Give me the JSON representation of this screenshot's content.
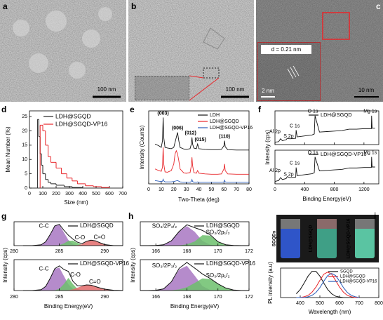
{
  "panels": {
    "a": {
      "label": "a",
      "scale_bar": "100 nm"
    },
    "b": {
      "label": "b",
      "scale_bar": "100 nm"
    },
    "c": {
      "label": "c",
      "scale_bar": "10 nm",
      "inset_spacing": "d = 0.21 nm",
      "inset_scale_bar": "2 nm"
    },
    "d": {
      "label": "d",
      "xlabel": "Size (nm)",
      "ylabel": "Mean Number (%)",
      "xlim": [
        0,
        700
      ],
      "xticks": [
        0,
        100,
        200,
        300,
        400,
        500,
        600,
        700
      ],
      "ylim": [
        0,
        27
      ],
      "yticks": [
        0,
        5,
        10,
        15,
        20,
        25
      ],
      "series": [
        {
          "name": "LDH@SGQD",
          "color": "#222222",
          "bins": [
            60,
            70,
            80,
            90,
            100,
            120,
            140,
            160,
            200,
            260,
            320,
            400
          ],
          "values": [
            24,
            18,
            12,
            8,
            5,
            3,
            2,
            1.5,
            1,
            0.5,
            0.2
          ]
        },
        {
          "name": "LDH@SGQD-VP16",
          "color": "#e8262a",
          "bins": [
            80,
            100,
            120,
            140,
            160,
            200,
            240,
            280,
            320,
            360,
            420,
            480,
            540,
            600
          ],
          "values": [
            22,
            20,
            15,
            11,
            9,
            7,
            5,
            3.5,
            2.5,
            1.5,
            0.8,
            0.5,
            0.2
          ]
        }
      ]
    },
    "e": {
      "label": "e",
      "xlabel": "Two-Theta (deg)",
      "ylabel": "Intensity (Counts)",
      "xlim": [
        0,
        80
      ],
      "xticks": [
        0,
        10,
        20,
        30,
        40,
        50,
        60,
        70,
        80
      ],
      "ylim": [
        0,
        22
      ],
      "peak_labels": [
        "(003)",
        "(006)",
        "(012)",
        "(015)",
        "(110)"
      ],
      "x": [
        5,
        8,
        10,
        11,
        11.5,
        12,
        13,
        15,
        18,
        20,
        21,
        22,
        23,
        24,
        25,
        28,
        30,
        33,
        34,
        34.5,
        35,
        36,
        38,
        39,
        40,
        45,
        50,
        55,
        58,
        60,
        60.5,
        61,
        63,
        70,
        80
      ],
      "series": [
        {
          "name": "LDH",
          "color": "#111111",
          "values": [
            12,
            11.5,
            11,
            13,
            20,
            14,
            11,
            10.8,
            10.6,
            11,
            12.5,
            14,
            15.5,
            13,
            11,
            10.5,
            10.4,
            10.6,
            12,
            14,
            12,
            10.8,
            10.6,
            12,
            10.6,
            10.4,
            10.3,
            10.3,
            10.4,
            11.5,
            13,
            11.2,
            10.3,
            10.2,
            10.2
          ]
        },
        {
          "name": "LDH@SGQD",
          "color": "#e8262a",
          "values": [
            4.5,
            4,
            3.8,
            5,
            11,
            6,
            3.6,
            3.5,
            4,
            6,
            9,
            10,
            9,
            7,
            4.5,
            3.3,
            3.2,
            3.4,
            5.5,
            8,
            5.5,
            3.4,
            3.2,
            4,
            3.2,
            3,
            2.9,
            2.9,
            3,
            4.5,
            6,
            4,
            3,
            2.9,
            2.9
          ]
        },
        {
          "name": "LDH@SGQD-VP16",
          "color": "#2a5cb8",
          "values": [
            1,
            0.8,
            0.7,
            0.8,
            1.4,
            0.9,
            0.6,
            0.6,
            0.6,
            0.7,
            0.8,
            0.9,
            1,
            0.8,
            0.6,
            0.5,
            0.5,
            0.5,
            0.7,
            1.3,
            0.7,
            0.5,
            0.5,
            0.6,
            0.5,
            0.5,
            0.5,
            0.5,
            0.5,
            0.6,
            1.1,
            0.6,
            0.5,
            0.5,
            0.5
          ]
        }
      ]
    },
    "f": {
      "label": "f",
      "xlabel": "Binding Energy(eV)",
      "ylabel": "Intensity (cps)",
      "xlim": [
        0,
        1400
      ],
      "xticks": [
        0,
        400,
        800,
        1200
      ],
      "ylim": [
        0,
        7
      ],
      "x": [
        0,
        50,
        75,
        100,
        150,
        165,
        200,
        280,
        285,
        300,
        400,
        500,
        530,
        540,
        600,
        700,
        800,
        900,
        1000,
        1100,
        1200,
        1300,
        1303,
        1310,
        1350
      ],
      "plots": [
        {
          "name": "LDH@SGQD",
          "color": "#111111",
          "peak_labels": [
            "Al 2p",
            "S 2p",
            "C 1s",
            "O 1s",
            "Mg 1s"
          ],
          "values": [
            0.5,
            0.6,
            1.2,
            0.8,
            1,
            1.3,
            1.2,
            1.3,
            3,
            1.6,
            1.8,
            2,
            2.2,
            6,
            2.6,
            2.7,
            2.8,
            2.9,
            3.2,
            3.2,
            3.3,
            3.3,
            6,
            3.4,
            3.4
          ]
        },
        {
          "name": "LDH@SGQD-VP16",
          "color": "#111111",
          "peak_labels": [
            "Al 2p",
            "S 2p",
            "C 1s",
            "O 1s",
            "Mg 1s"
          ],
          "values": [
            0.5,
            0.7,
            1.3,
            0.9,
            1.1,
            1.5,
            1.3,
            1.4,
            3.4,
            1.7,
            1.9,
            2.1,
            2.3,
            5.6,
            2.7,
            2.8,
            2.9,
            3,
            3.3,
            3.3,
            3.4,
            3.4,
            5.6,
            3.5,
            3.5
          ]
        }
      ]
    },
    "g": {
      "label": "g",
      "xlabel": "Binding Energy(eV)",
      "ylabel": "Intensity (cps)",
      "xlim": [
        280,
        292
      ],
      "xticks": [
        280,
        285,
        290
      ],
      "ylim": [
        0,
        11
      ],
      "x": [
        281,
        282,
        283,
        283.5,
        284,
        284.5,
        285,
        285.5,
        286,
        286.5,
        287,
        287.5,
        288,
        288.5,
        289,
        289.5,
        290,
        291,
        292
      ],
      "plots": [
        {
          "name": "LDH@SGQD",
          "color": "#111111",
          "values": [
            0,
            0,
            0.4,
            1.8,
            5.2,
            9.1,
            9.8,
            7.1,
            4.8,
            3.0,
            1.6,
            0.9,
            2.0,
            2.5,
            2.2,
            1.3,
            0.5,
            0,
            0
          ],
          "components": [
            {
              "label": "C-C",
              "color": "#a877c2",
              "values": [
                0,
                0,
                0.4,
                1.8,
                5.2,
                9.1,
                9.6,
                6.1,
                2.6,
                0.7,
                0.1,
                0,
                0,
                0,
                0,
                0,
                0,
                0,
                0
              ]
            },
            {
              "label": "C-O",
              "color": "#6cbf6c",
              "values": [
                0,
                0,
                0,
                0,
                0,
                0,
                0.2,
                1.0,
                2.2,
                2.3,
                1.3,
                0.3,
                0.1,
                0,
                0,
                0,
                0,
                0,
                0
              ]
            },
            {
              "label": "C=O",
              "color": "#e36b6b",
              "values": [
                0,
                0,
                0,
                0,
                0,
                0,
                0,
                0,
                0,
                0,
                0.2,
                0.6,
                1.9,
                2.5,
                2.2,
                1.3,
                0.5,
                0,
                0
              ]
            }
          ]
        },
        {
          "name": "LDH@SGQD-VP16",
          "color": "#111111",
          "values": [
            0,
            0,
            0.3,
            1.5,
            4.4,
            7.8,
            8.8,
            7.5,
            6.8,
            3.3,
            1.7,
            1.7,
            2,
            1.9,
            1.4,
            0.9,
            0.5,
            0.1,
            0
          ],
          "components": [
            {
              "label": "C-C",
              "color": "#a877c2",
              "values": [
                0,
                0,
                0.3,
                1.5,
                4.4,
                7.7,
                8.2,
                5.2,
                2.2,
                0.6,
                0.1,
                0,
                0,
                0,
                0,
                0,
                0,
                0,
                0
              ]
            },
            {
              "label": "C-O",
              "color": "#6cbf6c",
              "values": [
                0,
                0,
                0,
                0,
                0,
                0.1,
                0.6,
                2.3,
                4.5,
                2.3,
                0.6,
                0.1,
                0,
                0,
                0,
                0,
                0,
                0,
                0
              ]
            },
            {
              "label": "C=O",
              "color": "#e36b6b",
              "values": [
                0,
                0,
                0,
                0,
                0,
                0,
                0,
                0,
                0.1,
                0.4,
                1.0,
                1.6,
                2,
                1.9,
                1.4,
                0.9,
                0.5,
                0.1,
                0
              ]
            }
          ]
        }
      ]
    },
    "h": {
      "label": "h",
      "xlabel": "Binding Energy(eV)",
      "ylabel": "Intensity (cps)",
      "xlim": [
        165,
        172
      ],
      "xticks": [
        166,
        168,
        170,
        172
      ],
      "ylim": [
        0,
        11
      ],
      "x": [
        165,
        165.5,
        166,
        166.5,
        167,
        167.5,
        168,
        168.5,
        169,
        169.5,
        170,
        170.5,
        171,
        171.5,
        172
      ],
      "plots": [
        {
          "name": "LDH@SGQD",
          "color": "#111111",
          "values": [
            0,
            0,
            0.1,
            0.4,
            2.2,
            6.5,
            9.6,
            8.3,
            7.0,
            5.0,
            1.8,
            0.4,
            0.1,
            0,
            0
          ],
          "components": [
            {
              "label": "SO₃/2P₃/₂",
              "color": "#a877c2",
              "values": [
                0,
                0,
                0.1,
                0.4,
                2.2,
                6.4,
                9,
                6.4,
                2.2,
                0.4,
                0,
                0,
                0,
                0,
                0
              ]
            },
            {
              "label": "SO₃/2p₁/₂",
              "color": "#6cbf6c",
              "values": [
                0,
                0,
                0,
                0,
                0,
                0.1,
                0.6,
                1.9,
                4.8,
                4.6,
                1.8,
                0.4,
                0.1,
                0,
                0
              ]
            }
          ]
        },
        {
          "name": "LDH@SGQD-VP16",
          "color": "#111111",
          "values": [
            0,
            0,
            0.1,
            0.6,
            3.1,
            7.9,
            10,
            8,
            5.9,
            4.3,
            2.4,
            0.9,
            0.2,
            0,
            0
          ],
          "components": [
            {
              "label": "SO₃/2P₃/₂",
              "color": "#a877c2",
              "values": [
                0,
                0,
                0.1,
                0.6,
                3,
                7.5,
                8.8,
                5.3,
                1.6,
                0.2,
                0,
                0,
                0,
                0,
                0
              ]
            },
            {
              "label": "SO₃/2p₁/₂",
              "color": "#6cbf6c",
              "values": [
                0,
                0,
                0,
                0,
                0.1,
                0.4,
                1.2,
                2.7,
                4.3,
                4.1,
                2.4,
                0.9,
                0.2,
                0,
                0
              ]
            }
          ]
        }
      ]
    },
    "i": {
      "label": "i",
      "photo_labels": [
        "SGQDs",
        "LDH@SGQD",
        "LDH@SGQD-VP16"
      ],
      "xlabel": "Wavelength (nm)",
      "ylabel": "PL intensity (a.u)",
      "xlim": [
        300,
        800
      ],
      "xticks": [
        400,
        500,
        600,
        700,
        800
      ],
      "ylim": [
        0,
        1.1
      ],
      "x": [
        380,
        400,
        420,
        440,
        460,
        480,
        500,
        520,
        540,
        560,
        580,
        600,
        620,
        640,
        660,
        680,
        700
      ],
      "series": [
        {
          "name": "SGQD",
          "color": "#111111",
          "values": [
            0.14,
            0.3,
            0.54,
            0.8,
            0.98,
            0.98,
            0.8,
            0.54,
            0.3,
            0.14,
            0.05,
            0.02,
            0,
            0,
            0,
            0,
            0
          ]
        },
        {
          "name": "LDH@SGQD",
          "color": "#e8262a",
          "values": [
            0,
            0,
            0.03,
            0.08,
            0.2,
            0.39,
            0.64,
            0.87,
            0.95,
            0.87,
            0.64,
            0.39,
            0.2,
            0.08,
            0.03,
            0,
            0
          ]
        },
        {
          "name": "LDH@SGQD-VP16",
          "color": "#2a5cb8",
          "values": [
            0,
            0,
            0,
            0.03,
            0.08,
            0.19,
            0.37,
            0.61,
            0.82,
            0.9,
            0.82,
            0.61,
            0.37,
            0.19,
            0.08,
            0.03,
            0
          ]
        }
      ]
    }
  }
}
